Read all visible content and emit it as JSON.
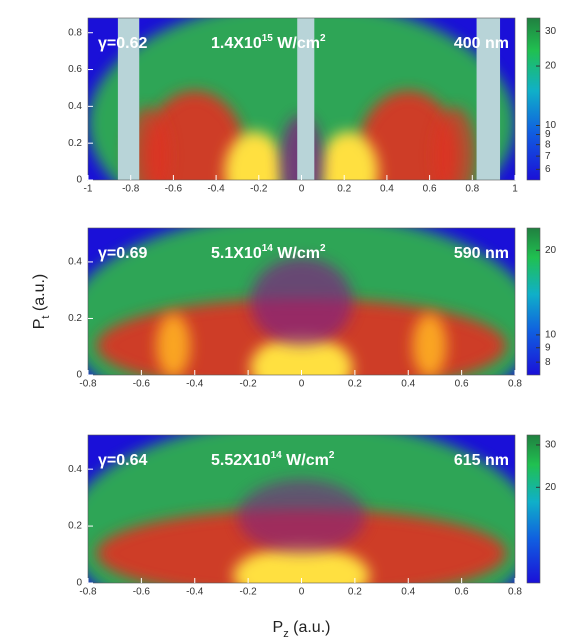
{
  "chart_data": [
    {
      "type": "heatmap",
      "xlim": [
        -1,
        1
      ],
      "ylim": [
        0,
        0.88
      ],
      "xticks": [
        -1,
        -0.8,
        -0.6,
        -0.4,
        -0.2,
        0,
        0.2,
        0.4,
        0.6,
        0.8,
        1
      ],
      "yticks": [
        0,
        0.2,
        0.4,
        0.6,
        0.8
      ],
      "colorbar": {
        "lim": [
          5.3,
          35
        ],
        "ticks": [
          6,
          7,
          8,
          9,
          10,
          20,
          30
        ],
        "log": true
      },
      "annotations": {
        "gamma": "γ=0.62",
        "intensity": [
          "1.4X10",
          "15",
          " W/cm",
          "2"
        ],
        "wavelength": "400 nm"
      }
    },
    {
      "type": "heatmap",
      "xlim": [
        -0.8,
        0.8
      ],
      "ylim": [
        0,
        0.52
      ],
      "xticks": [
        -0.8,
        -0.6,
        -0.4,
        -0.2,
        0,
        0.2,
        0.4,
        0.6,
        0.8
      ],
      "yticks": [
        0,
        0.2,
        0.4
      ],
      "colorbar": {
        "lim": [
          7.2,
          24
        ],
        "ticks": [
          8,
          9,
          10,
          20
        ],
        "log": true
      },
      "annotations": {
        "gamma": "γ=0.69",
        "intensity": [
          "5.1X10",
          "14",
          " W/cm",
          "2"
        ],
        "wavelength": "590 nm"
      },
      "ylabel": [
        "P",
        "t",
        " (a.u.)"
      ]
    },
    {
      "type": "heatmap",
      "xlim": [
        -0.8,
        0.8
      ],
      "ylim": [
        0,
        0.52
      ],
      "xticks": [
        -0.8,
        -0.6,
        -0.4,
        -0.2,
        0,
        0.2,
        0.4,
        0.6,
        0.8
      ],
      "yticks": [
        0,
        0.2,
        0.4
      ],
      "colorbar": {
        "lim": [
          8,
          33
        ],
        "ticks": [
          20,
          30
        ],
        "log": true
      },
      "annotations": {
        "gamma": "γ=0.64",
        "intensity": [
          "5.52X10",
          "14",
          " W/cm",
          "2"
        ],
        "wavelength": "615 nm"
      },
      "xlabel": [
        "P",
        "z",
        " (a.u.)"
      ]
    }
  ]
}
